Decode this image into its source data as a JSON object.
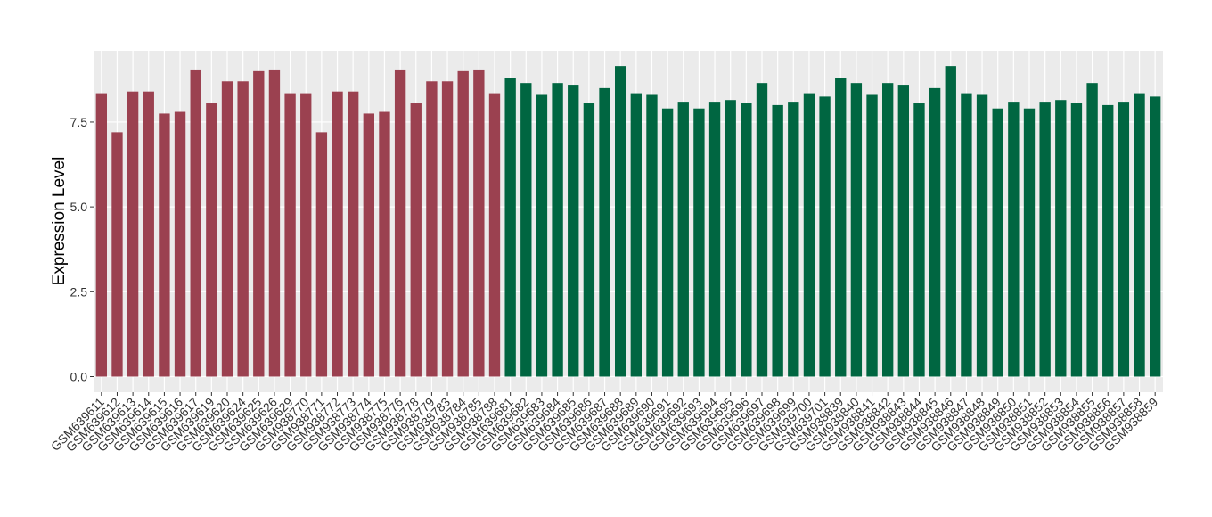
{
  "chart_data": {
    "type": "bar",
    "ylabel": "Expression Level",
    "categories": [
      "GSM639611",
      "GSM639612",
      "GSM639613",
      "GSM639614",
      "GSM639615",
      "GSM639616",
      "GSM639617",
      "GSM639619",
      "GSM639620",
      "GSM639624",
      "GSM639625",
      "GSM639626",
      "GSM639629",
      "GSM938770",
      "GSM938771",
      "GSM938772",
      "GSM938773",
      "GSM938774",
      "GSM938775",
      "GSM938776",
      "GSM938778",
      "GSM938779",
      "GSM938783",
      "GSM938784",
      "GSM938785",
      "GSM938788",
      "GSM639681",
      "GSM639682",
      "GSM639683",
      "GSM639684",
      "GSM639685",
      "GSM639686",
      "GSM639687",
      "GSM639688",
      "GSM639689",
      "GSM639690",
      "GSM639691",
      "GSM639692",
      "GSM639693",
      "GSM639694",
      "GSM639695",
      "GSM639696",
      "GSM639697",
      "GSM639698",
      "GSM639699",
      "GSM639700",
      "GSM639701",
      "GSM938839",
      "GSM938840",
      "GSM938841",
      "GSM938842",
      "GSM938843",
      "GSM938844",
      "GSM938845",
      "GSM938846",
      "GSM938847",
      "GSM938848",
      "GSM938849",
      "GSM938850",
      "GSM938851",
      "GSM938852",
      "GSM938853",
      "GSM938854",
      "GSM938855",
      "GSM938856",
      "GSM938857",
      "GSM938858",
      "GSM938859"
    ],
    "values": [
      8.35,
      7.2,
      8.4,
      8.4,
      7.75,
      7.8,
      9.05,
      8.05,
      8.7,
      8.7,
      9.0,
      9.05,
      8.35,
      8.35,
      7.2,
      8.4,
      8.4,
      7.75,
      7.8,
      9.05,
      8.05,
      8.7,
      8.7,
      9.0,
      9.05,
      8.35,
      8.8,
      8.65,
      8.3,
      8.65,
      8.6,
      8.05,
      8.5,
      9.15,
      8.35,
      8.3,
      7.9,
      8.1,
      7.9,
      8.1,
      8.15,
      8.05,
      8.65,
      8.0,
      8.1,
      8.35,
      8.25,
      8.8,
      8.65,
      8.3,
      8.65,
      8.6,
      8.05,
      8.5,
      9.15,
      8.35,
      8.3,
      7.9,
      8.1,
      7.9,
      8.1,
      8.15,
      8.05,
      8.65,
      8.0,
      8.1,
      8.35,
      8.25
    ],
    "colors": [
      "#9b4150",
      "#9b4150",
      "#9b4150",
      "#9b4150",
      "#9b4150",
      "#9b4150",
      "#9b4150",
      "#9b4150",
      "#9b4150",
      "#9b4150",
      "#9b4150",
      "#9b4150",
      "#9b4150",
      "#9b4150",
      "#9b4150",
      "#9b4150",
      "#9b4150",
      "#9b4150",
      "#9b4150",
      "#9b4150",
      "#9b4150",
      "#9b4150",
      "#9b4150",
      "#9b4150",
      "#9b4150",
      "#9b4150",
      "#006641",
      "#006641",
      "#006641",
      "#006641",
      "#006641",
      "#006641",
      "#006641",
      "#006641",
      "#006641",
      "#006641",
      "#006641",
      "#006641",
      "#006641",
      "#006641",
      "#006641",
      "#006641",
      "#006641",
      "#006641",
      "#006641",
      "#006641",
      "#006641",
      "#006641",
      "#006641",
      "#006641",
      "#006641",
      "#006641",
      "#006641",
      "#006641",
      "#006641",
      "#006641",
      "#006641",
      "#006641",
      "#006641",
      "#006641",
      "#006641",
      "#006641",
      "#006641",
      "#006641",
      "#006641",
      "#006641",
      "#006641",
      "#006641"
    ],
    "ylim": [
      -0.46,
      9.6
    ],
    "yticks": [
      {
        "value": 0,
        "label": "0.0"
      },
      {
        "value": 2.5,
        "label": "2.5"
      },
      {
        "value": 5,
        "label": "5.0"
      },
      {
        "value": 7.5,
        "label": "7.5"
      }
    ],
    "grid": true
  }
}
